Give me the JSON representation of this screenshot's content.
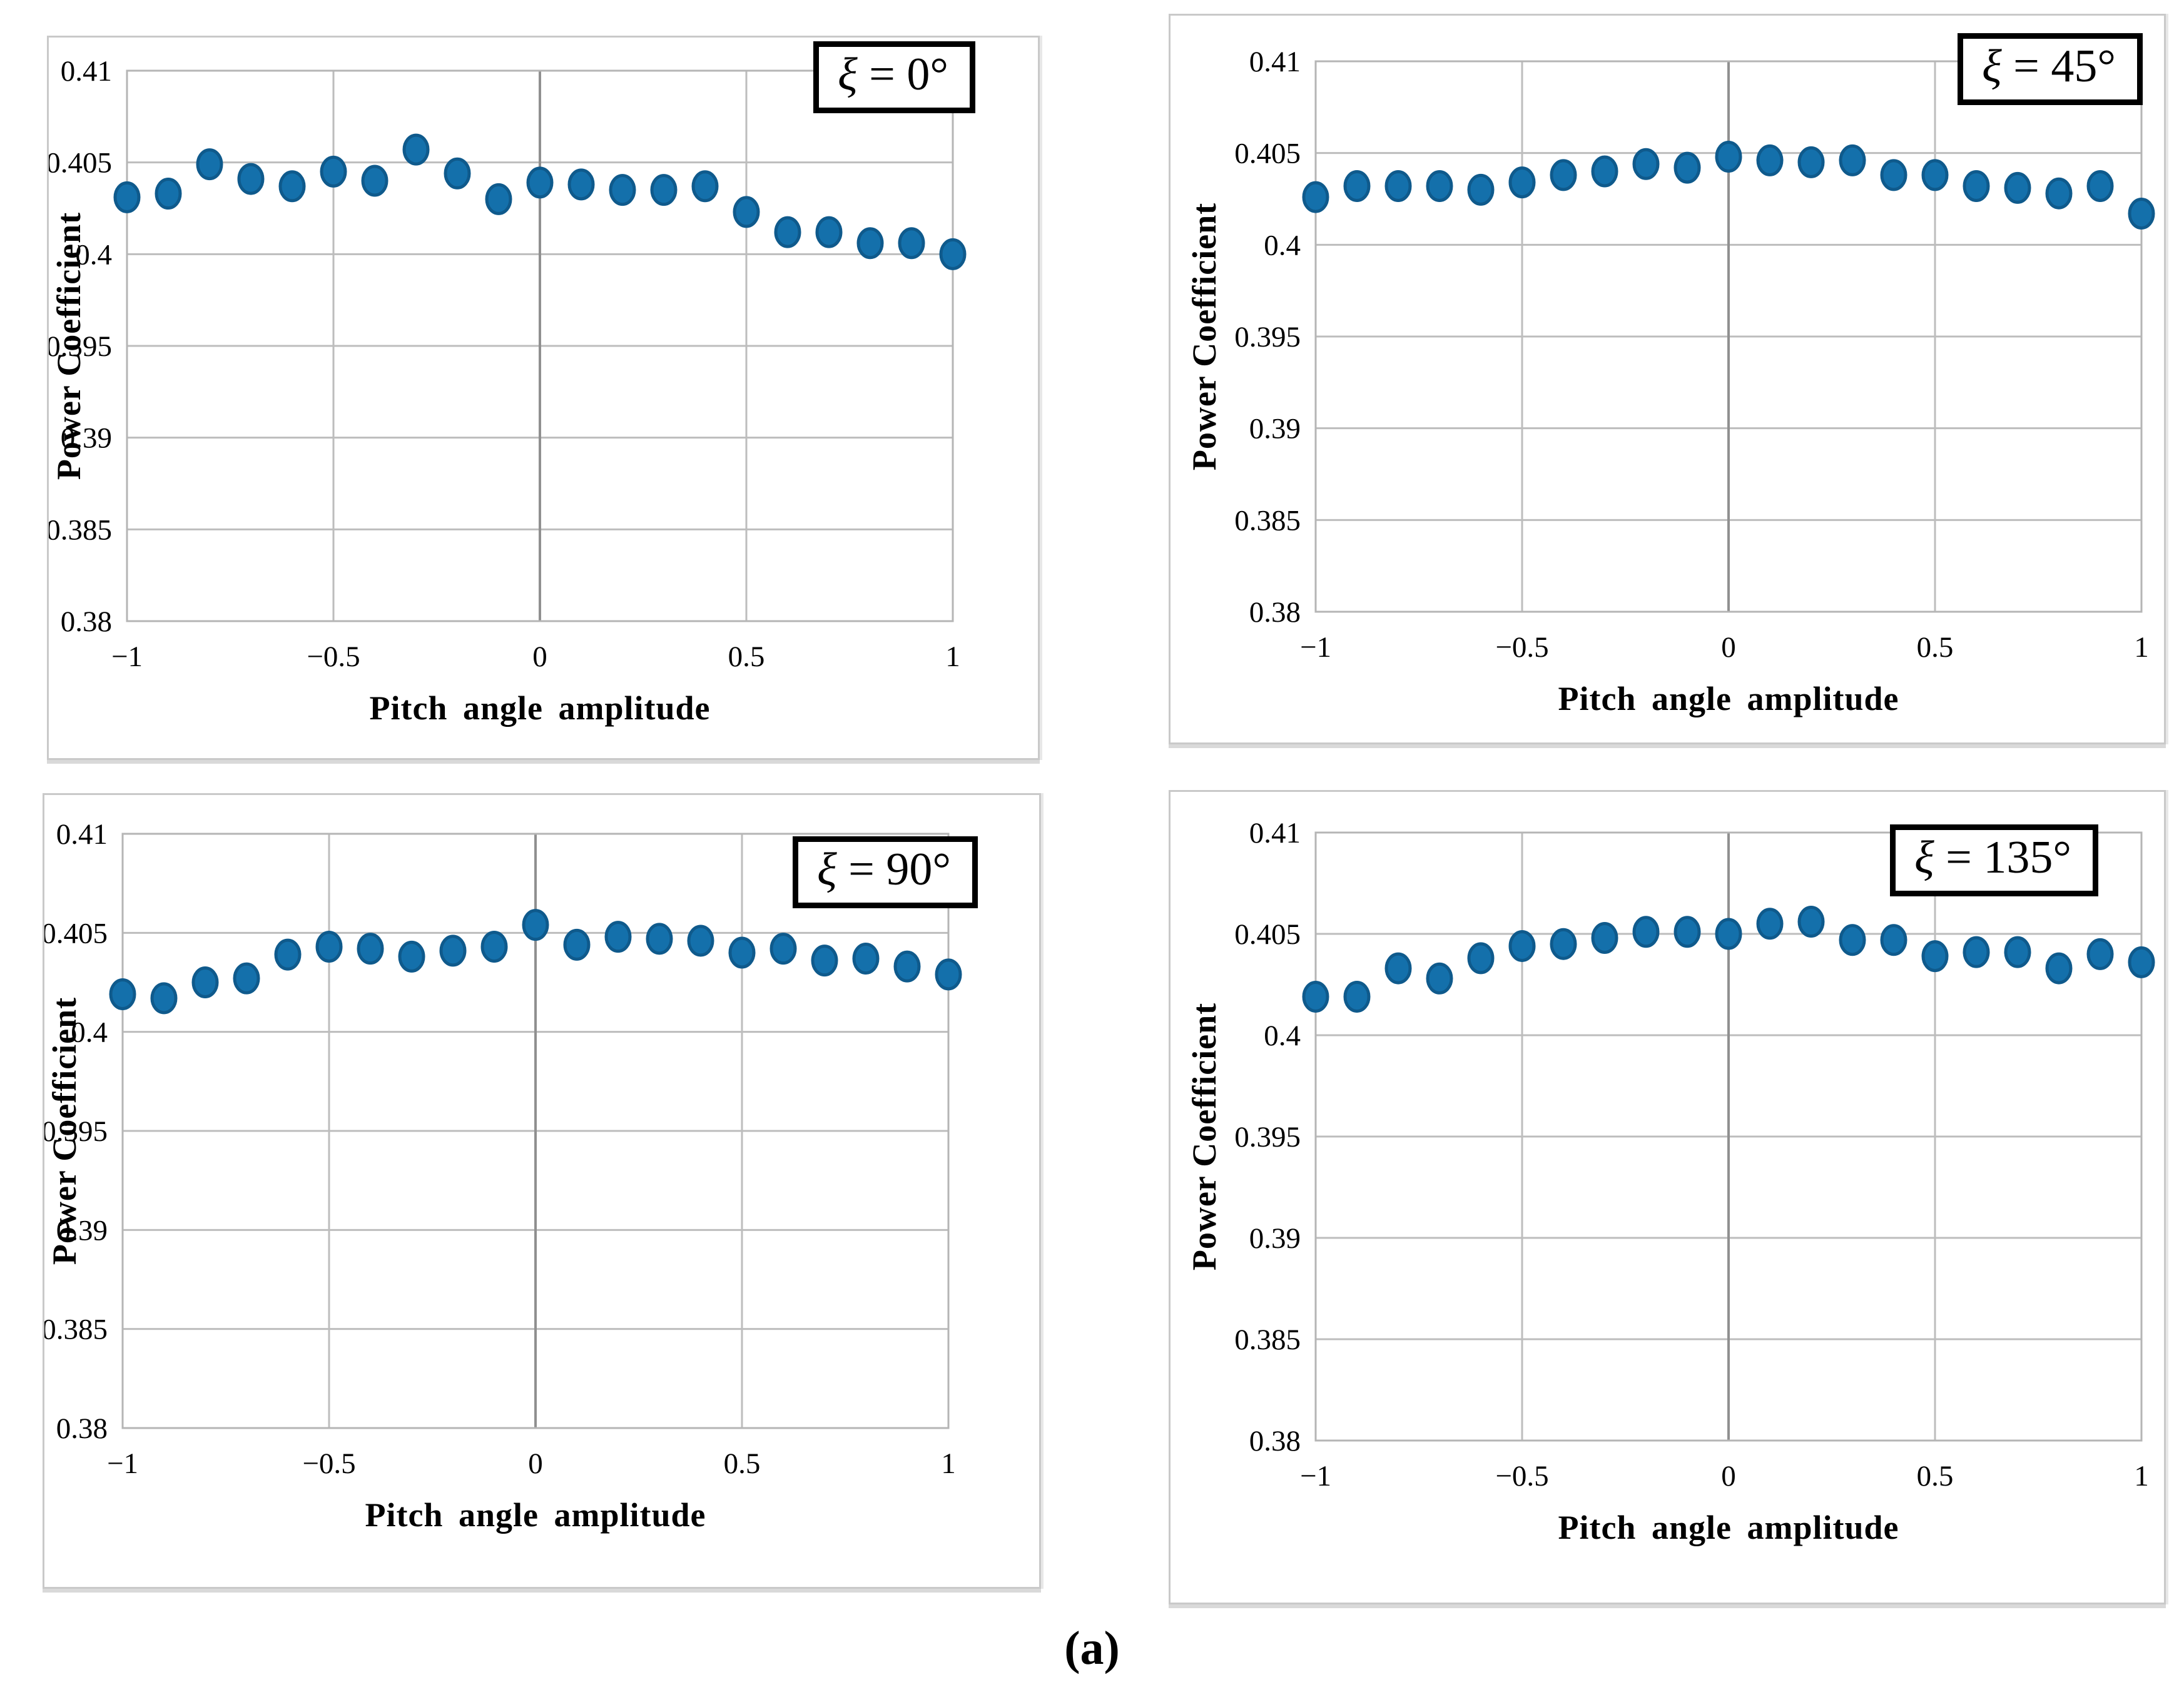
{
  "caption": "(a)",
  "colors": {
    "point_fill": "#1470ab",
    "point_stroke": "#0f5a8c",
    "grid": "#bdbdbd",
    "axis_center_line": "#909090",
    "plot_border": "#b5b5b5",
    "panel_border": "#c9c9c9",
    "legend_border": "#000000",
    "text": "#000000"
  },
  "chart_data": [
    {
      "type": "scatter",
      "legend_var": "ξ",
      "legend_eq": " = 0°",
      "xlabel": "Pitch angle amplitude",
      "ylabel": "Power Coefficient",
      "xlim": [
        -1,
        1
      ],
      "ylim": [
        0.38,
        0.41
      ],
      "xtick_vals": [
        -1,
        -0.5,
        0,
        0.5,
        1
      ],
      "xtick_labels": [
        "−1",
        "−0.5",
        "0",
        "0.5",
        "1"
      ],
      "ytick_vals": [
        0.38,
        0.385,
        0.39,
        0.395,
        0.4,
        0.405,
        0.41
      ],
      "ytick_labels": [
        "0.38",
        "0.385",
        "0.39",
        "0.395",
        "0.4",
        "0.405",
        "0.41"
      ],
      "grid": true,
      "legend_position": "top-right",
      "x": [
        -1,
        -0.9,
        -0.8,
        -0.7,
        -0.6,
        -0.5,
        -0.4,
        -0.3,
        -0.2,
        -0.1,
        0,
        0.1,
        0.2,
        0.3,
        0.4,
        0.5,
        0.6,
        0.7,
        0.8,
        0.9,
        1
      ],
      "y": [
        0.4031,
        0.4033,
        0.4049,
        0.4041,
        0.4037,
        0.4045,
        0.404,
        0.4057,
        0.4044,
        0.403,
        0.4039,
        0.4038,
        0.4035,
        0.4035,
        0.4037,
        0.4023,
        0.4012,
        0.4012,
        0.4006,
        0.4006,
        0.4
      ]
    },
    {
      "type": "scatter",
      "legend_var": "ξ",
      "legend_eq": " = 45°",
      "xlabel": "Pitch angle amplitude",
      "ylabel": "Power Coefficient",
      "xlim": [
        -1,
        1
      ],
      "ylim": [
        0.38,
        0.41
      ],
      "xtick_vals": [
        -1,
        -0.5,
        0,
        0.5,
        1
      ],
      "xtick_labels": [
        "−1",
        "−0.5",
        "0",
        "0.5",
        "1"
      ],
      "ytick_vals": [
        0.38,
        0.385,
        0.39,
        0.395,
        0.4,
        0.405,
        0.41
      ],
      "ytick_labels": [
        "0.38",
        "0.385",
        "0.39",
        "0.395",
        "0.4",
        "0.405",
        "0.41"
      ],
      "grid": true,
      "legend_position": "top-right",
      "x": [
        -1,
        -0.9,
        -0.8,
        -0.7,
        -0.6,
        -0.5,
        -0.4,
        -0.3,
        -0.2,
        -0.1,
        0,
        0.1,
        0.2,
        0.3,
        0.4,
        0.5,
        0.6,
        0.7,
        0.8,
        0.9,
        1
      ],
      "y": [
        0.4026,
        0.4032,
        0.4032,
        0.4032,
        0.403,
        0.4034,
        0.4038,
        0.404,
        0.4044,
        0.4042,
        0.4048,
        0.4046,
        0.4045,
        0.4046,
        0.4038,
        0.4038,
        0.4032,
        0.4031,
        0.4028,
        0.4032,
        0.4017
      ]
    },
    {
      "type": "scatter",
      "legend_var": "ξ",
      "legend_eq": " = 90°",
      "xlabel": "Pitch angle amplitude",
      "ylabel": "Power Coefficient",
      "xlim": [
        -1,
        1
      ],
      "ylim": [
        0.38,
        0.41
      ],
      "xtick_vals": [
        -1,
        -0.5,
        0,
        0.5,
        1
      ],
      "xtick_labels": [
        "−1",
        "−0.5",
        "0",
        "0.5",
        "1"
      ],
      "ytick_vals": [
        0.38,
        0.385,
        0.39,
        0.395,
        0.4,
        0.405,
        0.41
      ],
      "ytick_labels": [
        "0.38",
        "0.385",
        "0.39",
        "0.395",
        "0.4",
        "0.405",
        "0.41"
      ],
      "grid": true,
      "legend_position": "top-right",
      "x": [
        -1,
        -0.9,
        -0.8,
        -0.7,
        -0.6,
        -0.5,
        -0.4,
        -0.3,
        -0.2,
        -0.1,
        0,
        0.1,
        0.2,
        0.3,
        0.4,
        0.5,
        0.6,
        0.7,
        0.8,
        0.9,
        1
      ],
      "y": [
        0.4019,
        0.4017,
        0.4025,
        0.4027,
        0.4039,
        0.4043,
        0.4042,
        0.4038,
        0.4041,
        0.4043,
        0.4054,
        0.4044,
        0.4048,
        0.4047,
        0.4046,
        0.404,
        0.4042,
        0.4036,
        0.4037,
        0.4033,
        0.4029
      ]
    },
    {
      "type": "scatter",
      "legend_var": "ξ",
      "legend_eq": " = 135°",
      "xlabel": "Pitch angle amplitude",
      "ylabel": "Power Coefficient",
      "xlim": [
        -1,
        1
      ],
      "ylim": [
        0.38,
        0.41
      ],
      "xtick_vals": [
        -1,
        -0.5,
        0,
        0.5,
        1
      ],
      "xtick_labels": [
        "−1",
        "−0.5",
        "0",
        "0.5",
        "1"
      ],
      "ytick_vals": [
        0.38,
        0.385,
        0.39,
        0.395,
        0.4,
        0.405,
        0.41
      ],
      "ytick_labels": [
        "0.38",
        "0.385",
        "0.39",
        "0.395",
        "0.4",
        "0.405",
        "0.41"
      ],
      "grid": true,
      "legend_position": "top-right",
      "x": [
        -1,
        -0.9,
        -0.8,
        -0.7,
        -0.6,
        -0.5,
        -0.4,
        -0.3,
        -0.2,
        -0.1,
        0,
        0.1,
        0.2,
        0.3,
        0.4,
        0.5,
        0.6,
        0.7,
        0.8,
        0.9,
        1
      ],
      "y": [
        0.4019,
        0.4019,
        0.4033,
        0.4028,
        0.4038,
        0.4044,
        0.4045,
        0.4048,
        0.4051,
        0.4051,
        0.405,
        0.4055,
        0.4056,
        0.4047,
        0.4047,
        0.4039,
        0.4041,
        0.4041,
        0.4033,
        0.404,
        0.4036
      ]
    }
  ]
}
